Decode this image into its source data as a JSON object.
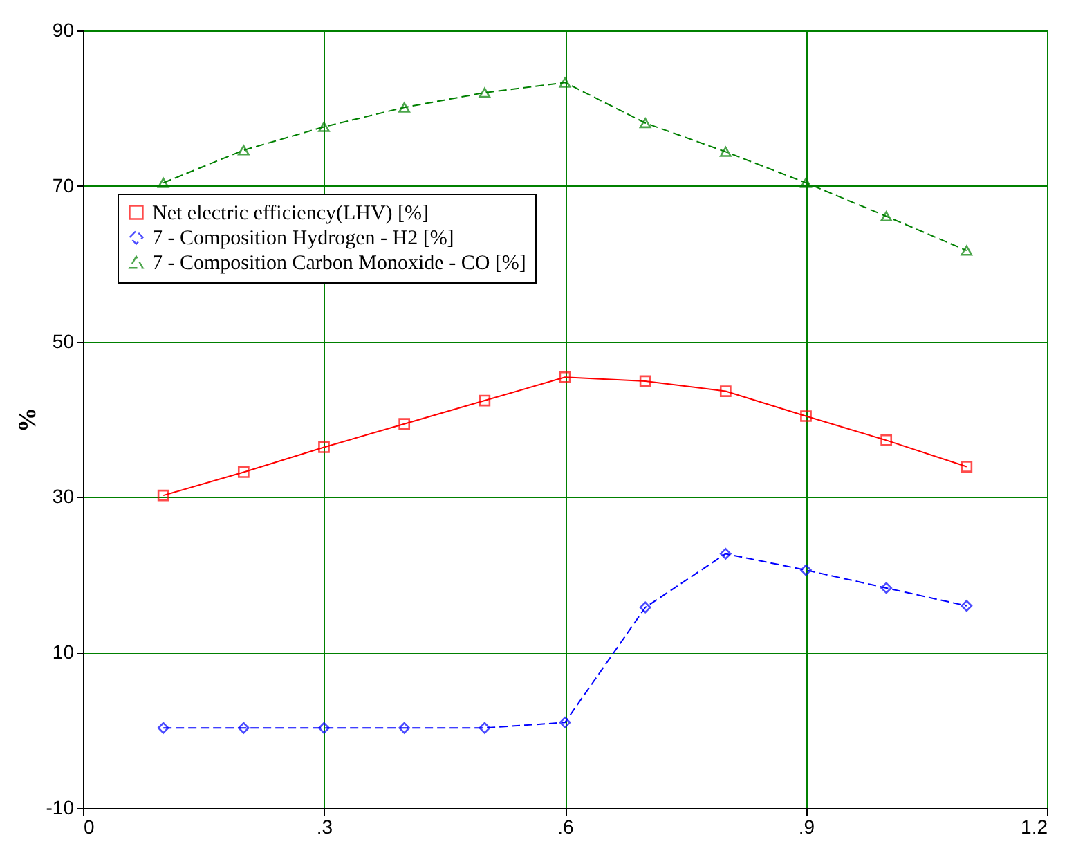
{
  "chart_data": {
    "type": "line",
    "ylabel": "%",
    "x": [
      0.1,
      0.2,
      0.3,
      0.4,
      0.5,
      0.6,
      0.7,
      0.8,
      0.9,
      1.0,
      1.1
    ],
    "series": [
      {
        "name": "Net electric efficiency(LHV) [%]",
        "color": "#ff0000",
        "marker": "square",
        "line_style": "solid",
        "values": [
          30.2,
          33.2,
          36.4,
          39.4,
          42.4,
          45.4,
          44.9,
          43.6,
          40.4,
          37.3,
          33.9
        ]
      },
      {
        "name": "7 - Composition Hydrogen - H2 [%]",
        "color": "#0000ff",
        "marker": "diamond",
        "line_style": "dashed",
        "values": [
          0.3,
          0.3,
          0.3,
          0.3,
          0.3,
          1.0,
          15.8,
          22.7,
          20.6,
          18.3,
          16.0
        ]
      },
      {
        "name": "7 - Composition Carbon Monoxide - CO [%]",
        "color": "#008000",
        "marker": "triangle",
        "line_style": "dashed",
        "values": [
          70.4,
          74.6,
          77.6,
          80.1,
          82.0,
          83.3,
          78.1,
          74.4,
          70.4,
          66.1,
          61.7
        ]
      }
    ],
    "xlim": [
      0,
      1.2
    ],
    "xticks": [
      0,
      {
        "value": 0.3,
        "label": ".3"
      },
      {
        "value": 0.6,
        "label": ".6"
      },
      {
        "value": 0.9,
        "label": ".9"
      },
      1.2
    ],
    "ylim": [
      -10,
      90
    ],
    "yticks": [
      -10,
      10,
      30,
      50,
      70,
      90
    ],
    "grid": true,
    "legend": "top left"
  }
}
